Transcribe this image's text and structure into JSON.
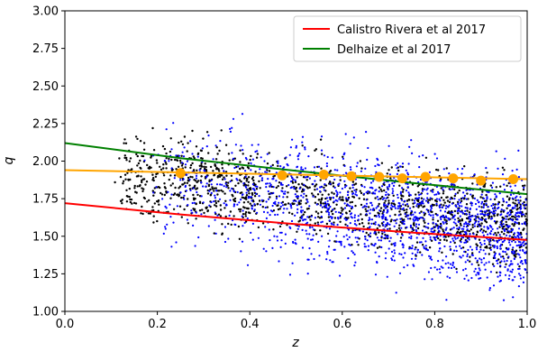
{
  "chart_data": {
    "type": "scatter",
    "xlabel": "z",
    "ylabel": "q",
    "xlim": [
      0.0,
      1.0
    ],
    "ylim": [
      1.0,
      3.0
    ],
    "x_ticks": [
      "0.0",
      "0.2",
      "0.4",
      "0.6",
      "0.8",
      "1.0"
    ],
    "y_ticks": [
      "1.00",
      "1.25",
      "1.50",
      "1.75",
      "2.00",
      "2.25",
      "2.50",
      "2.75",
      "3.00"
    ],
    "grid": false,
    "legend_position": "top-right",
    "legend": [
      {
        "label": "Calistro Rivera et al 2017",
        "color": "#ff0000"
      },
      {
        "label": "Delhaize et al 2017",
        "color": "#008000"
      }
    ],
    "lines": [
      {
        "name": "Calistro Rivera et al 2017",
        "color": "#ff0000",
        "x": [
          0.0,
          0.25,
          0.5,
          0.75,
          1.0
        ],
        "y": [
          1.72,
          1.645,
          1.58,
          1.525,
          1.475
        ]
      },
      {
        "name": "Delhaize et al 2017",
        "color": "#008000",
        "x": [
          0.0,
          0.25,
          0.5,
          0.75,
          1.0
        ],
        "y": [
          2.12,
          2.02,
          1.935,
          1.855,
          1.78
        ]
      },
      {
        "color": "#ffa500",
        "x": [
          0.0,
          0.25,
          0.5,
          0.75,
          1.0
        ],
        "y": [
          1.94,
          1.925,
          1.91,
          1.895,
          1.88
        ]
      }
    ],
    "binned_points": {
      "color": "#ffa500",
      "x": [
        0.25,
        0.47,
        0.56,
        0.62,
        0.68,
        0.73,
        0.78,
        0.84,
        0.9,
        0.97
      ],
      "y": [
        1.92,
        1.905,
        1.91,
        1.9,
        1.895,
        1.885,
        1.895,
        1.885,
        1.87,
        1.88
      ]
    },
    "scatter_series": [
      {
        "color": "#000000",
        "z_range": [
          0.1,
          1.0
        ],
        "q_center": [
          1.92,
          1.58
        ],
        "q_spread": 0.18
      },
      {
        "color": "#0000ff",
        "z_range": [
          0.15,
          1.0
        ],
        "q_center": [
          1.9,
          1.52
        ],
        "q_spread": 0.25
      }
    ]
  }
}
